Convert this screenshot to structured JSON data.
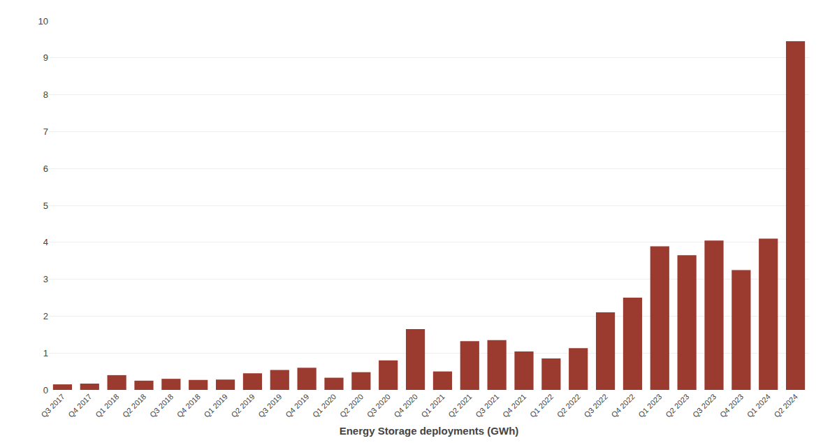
{
  "chart_data": {
    "type": "bar",
    "xlabel": "Energy Storage deployments (GWh)",
    "categories": [
      "Q3 2017",
      "Q4 2017",
      "Q1 2018",
      "Q2 2018",
      "Q3 2018",
      "Q4 2018",
      "Q1 2019",
      "Q2 2019",
      "Q3 2019",
      "Q4 2019",
      "Q1 2020",
      "Q2 2020",
      "Q3 2020",
      "Q4 2020",
      "Q1 2021",
      "Q2 2021",
      "Q3 2021",
      "Q4 2021",
      "Q1 2022",
      "Q2 2022",
      "Q3 2022",
      "Q4 2022",
      "Q1 2023",
      "Q2 2023",
      "Q3 2023",
      "Q4 2023",
      "Q1 2024",
      "Q2 2024"
    ],
    "values": [
      0.15,
      0.17,
      0.4,
      0.25,
      0.3,
      0.27,
      0.28,
      0.45,
      0.54,
      0.6,
      0.33,
      0.48,
      0.8,
      1.65,
      0.5,
      1.32,
      1.35,
      1.04,
      0.85,
      1.13,
      2.1,
      2.5,
      3.89,
      3.65,
      4.05,
      3.25,
      4.1,
      9.45
    ],
    "color": "#9B3A2E",
    "ylim": [
      0,
      10
    ],
    "yticks": [
      0,
      1,
      2,
      3,
      4,
      5,
      6,
      7,
      8,
      9,
      10
    ],
    "grid": true
  }
}
